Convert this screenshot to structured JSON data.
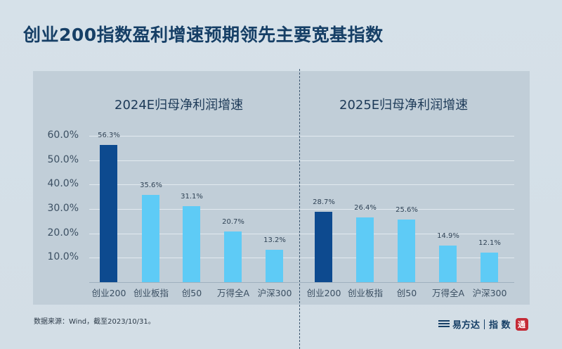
{
  "title": "创业200指数盈利增速预期领先主要宽基指数",
  "source": "数据来源：Wind，截至2023/10/31。",
  "logo": {
    "brand": "易方达",
    "separator": "|",
    "suffix": "指 数",
    "stamp": "通"
  },
  "colors": {
    "highlight": "#0d4a8f",
    "normal": "#5ecbf6",
    "panel": "#c1ced8",
    "title": "#163f66"
  },
  "yaxis": {
    "ticks": [
      "60.0%",
      "50.0%",
      "40.0%",
      "30.0%",
      "20.0%",
      "10.0%"
    ]
  },
  "chart_data": [
    {
      "type": "bar",
      "title": "2024E归母净利润增速",
      "categories": [
        "创业200",
        "创业板指",
        "创50",
        "万得全A",
        "沪深300"
      ],
      "values": [
        56.3,
        35.6,
        31.1,
        20.7,
        13.2
      ],
      "labels": [
        "56.3%",
        "35.6%",
        "31.1%",
        "20.7%",
        "13.2%"
      ],
      "highlight_index": 0,
      "xlabel": "",
      "ylabel": "",
      "ylim": [
        0,
        60
      ],
      "yticks": [
        "10.0%",
        "20.0%",
        "30.0%",
        "40.0%",
        "50.0%",
        "60.0%"
      ],
      "grid": true
    },
    {
      "type": "bar",
      "title": "2025E归母净利润增速",
      "categories": [
        "创业200",
        "创业板指",
        "创50",
        "万得全A",
        "沪深300"
      ],
      "values": [
        28.7,
        26.4,
        25.6,
        14.9,
        12.1
      ],
      "labels": [
        "28.7%",
        "26.4%",
        "25.6%",
        "14.9%",
        "12.1%"
      ],
      "highlight_index": 0,
      "xlabel": "",
      "ylabel": "",
      "ylim": [
        0,
        60
      ],
      "grid": true
    }
  ]
}
